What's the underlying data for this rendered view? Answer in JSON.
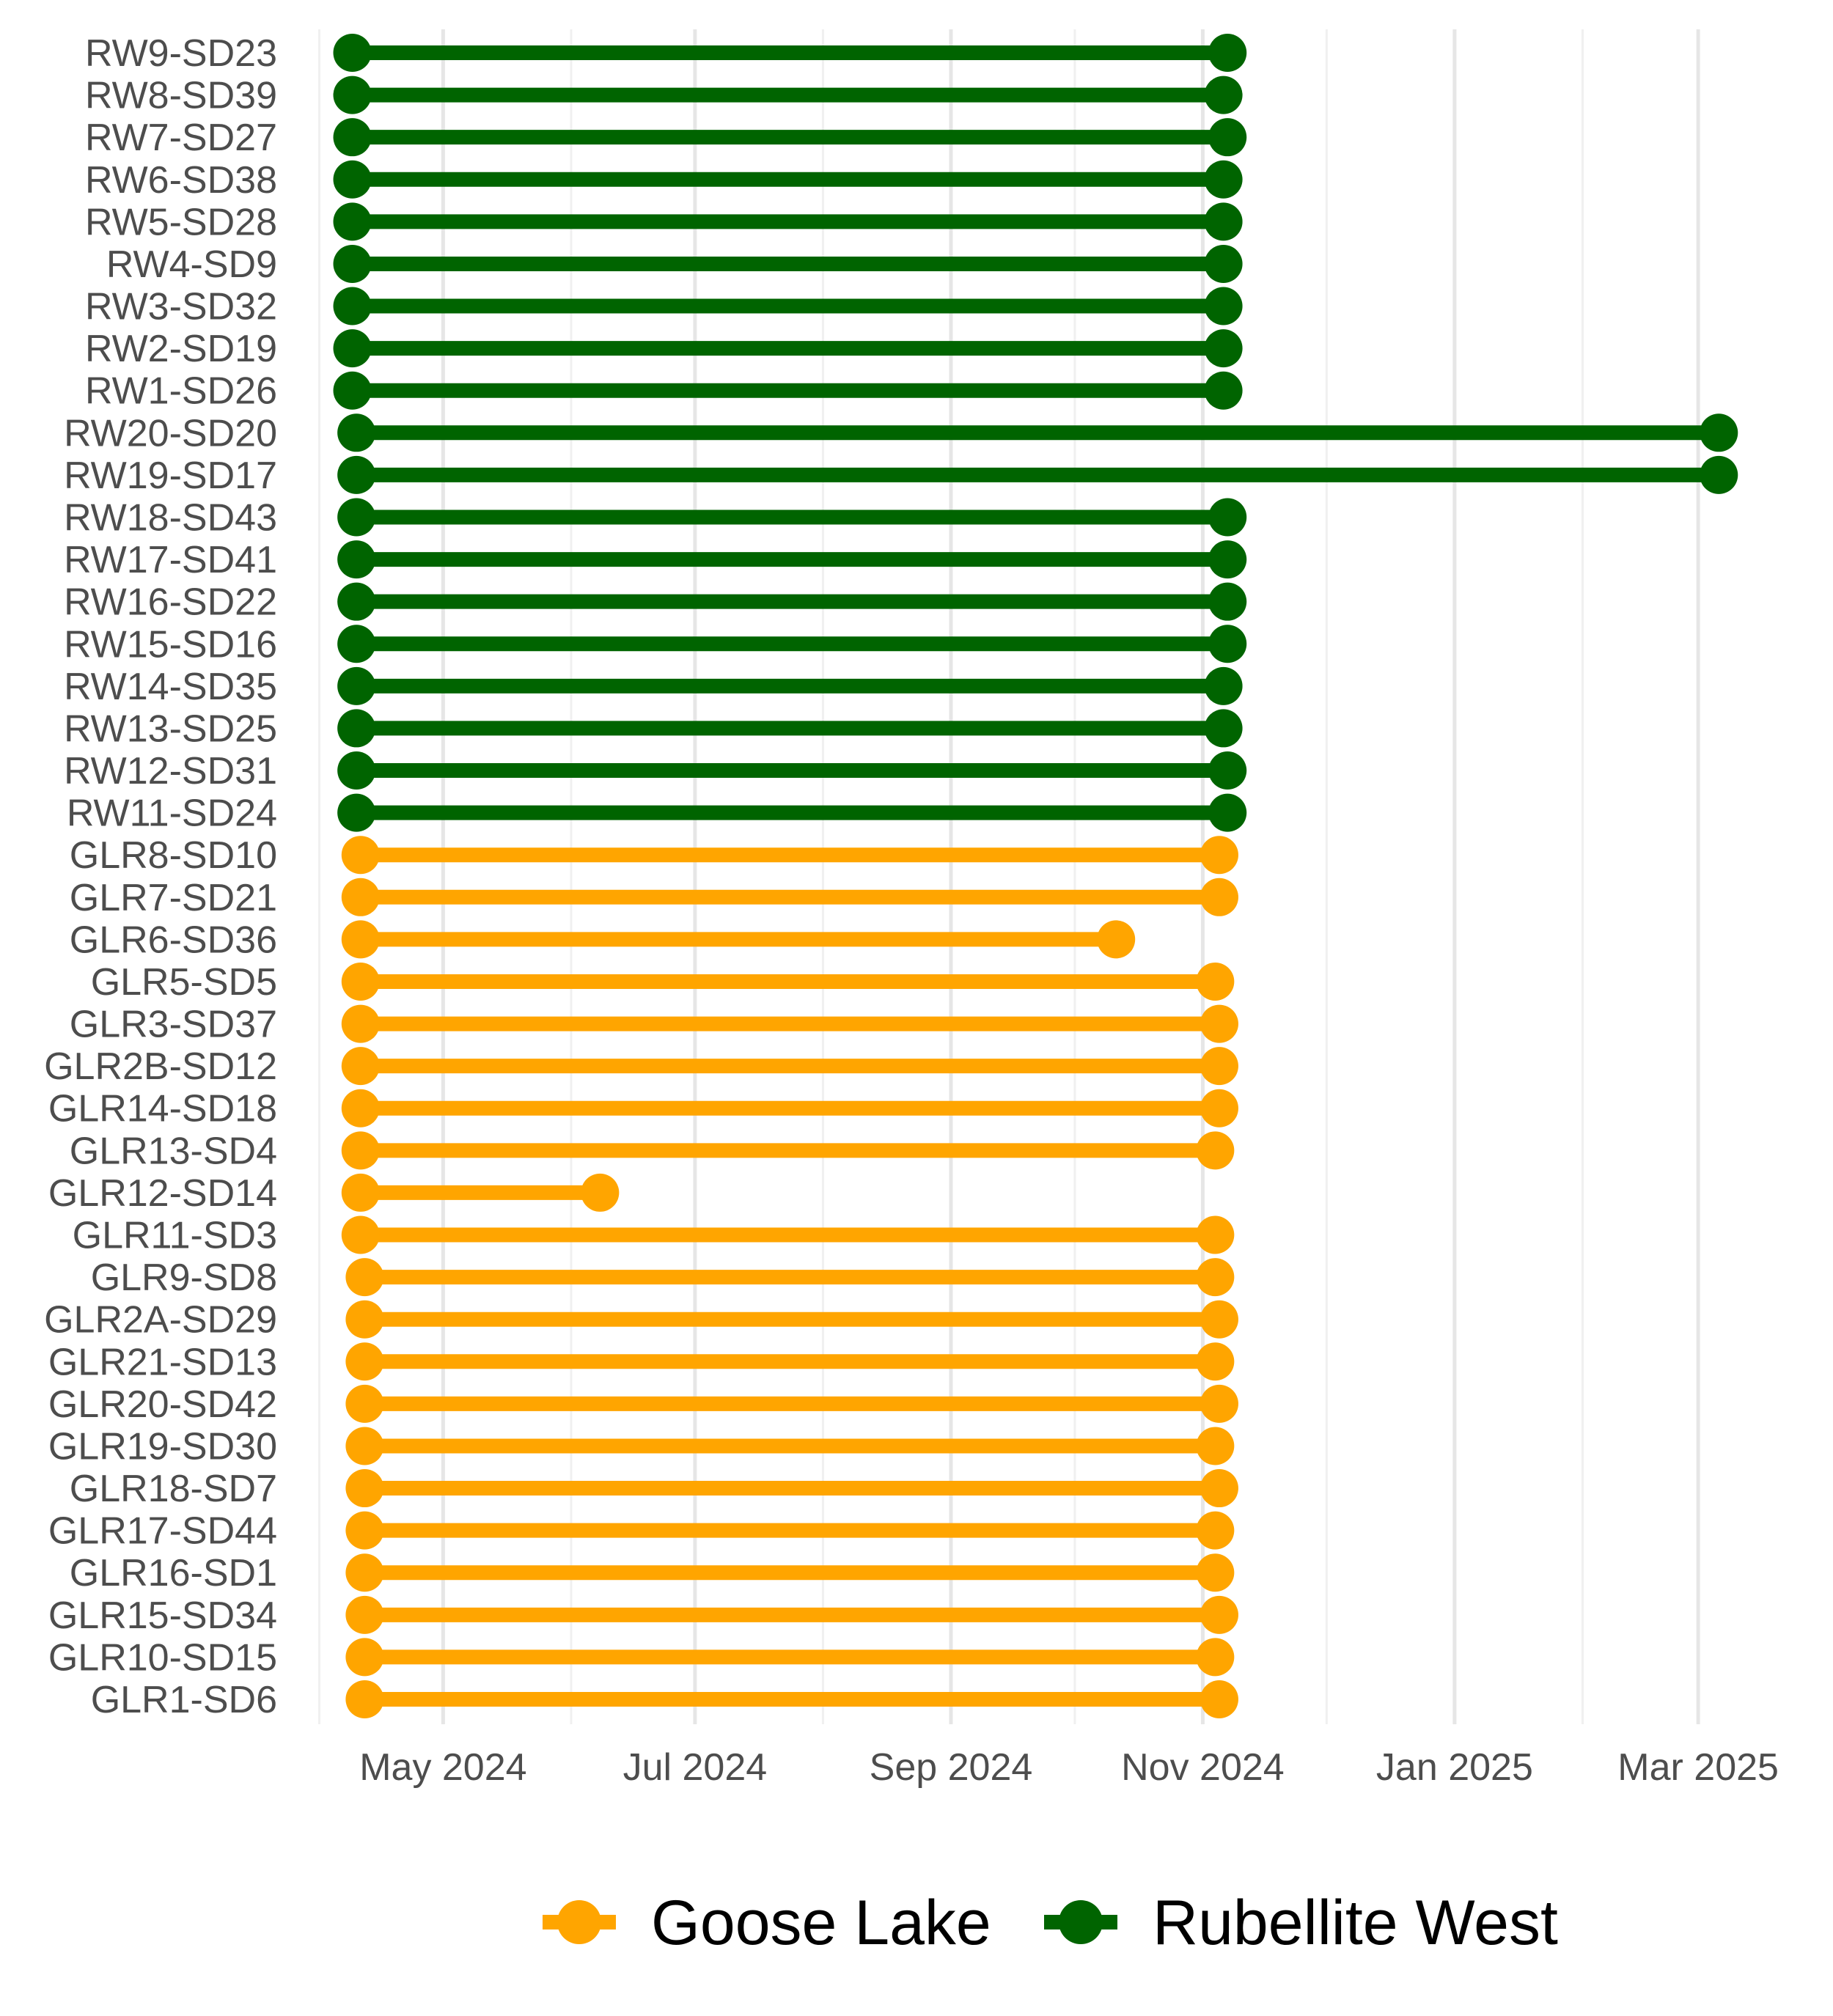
{
  "chart_data": {
    "type": "dumbbell",
    "x_axis": {
      "scale": "date",
      "range": [
        "2024-04-05",
        "2025-03-23"
      ],
      "ticks": [
        {
          "date": "2024-05-01",
          "label": "May 2024"
        },
        {
          "date": "2024-07-01",
          "label": "Jul 2024"
        },
        {
          "date": "2024-09-01",
          "label": "Sep 2024"
        },
        {
          "date": "2024-11-01",
          "label": "Nov 2024"
        },
        {
          "date": "2025-01-01",
          "label": "Jan 2025"
        },
        {
          "date": "2025-03-01",
          "label": "Mar 2025"
        }
      ],
      "minor_ticks": [
        "2024-04-01",
        "2024-06-01",
        "2024-08-01",
        "2024-10-01",
        "2024-12-01",
        "2025-02-01"
      ]
    },
    "grid": "vertical",
    "legend": {
      "position": "bottom",
      "entries": [
        {
          "label": "Goose Lake",
          "color": "#FFA500"
        },
        {
          "label": "Rubellite West",
          "color": "#006400"
        }
      ]
    },
    "series": [
      {
        "name": "Goose Lake",
        "color": "#FFA500",
        "rows": [
          {
            "label": "GLR1-SD6",
            "start": "2024-04-12",
            "end": "2024-11-05"
          },
          {
            "label": "GLR10-SD15",
            "start": "2024-04-12",
            "end": "2024-11-04"
          },
          {
            "label": "GLR15-SD34",
            "start": "2024-04-12",
            "end": "2024-11-05"
          },
          {
            "label": "GLR16-SD1",
            "start": "2024-04-12",
            "end": "2024-11-04"
          },
          {
            "label": "GLR17-SD44",
            "start": "2024-04-12",
            "end": "2024-11-04"
          },
          {
            "label": "GLR18-SD7",
            "start": "2024-04-12",
            "end": "2024-11-05"
          },
          {
            "label": "GLR19-SD30",
            "start": "2024-04-12",
            "end": "2024-11-04"
          },
          {
            "label": "GLR20-SD42",
            "start": "2024-04-12",
            "end": "2024-11-05"
          },
          {
            "label": "GLR21-SD13",
            "start": "2024-04-12",
            "end": "2024-11-04"
          },
          {
            "label": "GLR2A-SD29",
            "start": "2024-04-12",
            "end": "2024-11-05"
          },
          {
            "label": "GLR9-SD8",
            "start": "2024-04-12",
            "end": "2024-11-04"
          },
          {
            "label": "GLR11-SD3",
            "start": "2024-04-11",
            "end": "2024-11-04"
          },
          {
            "label": "GLR12-SD14",
            "start": "2024-04-11",
            "end": "2024-06-08"
          },
          {
            "label": "GLR13-SD4",
            "start": "2024-04-11",
            "end": "2024-11-04"
          },
          {
            "label": "GLR14-SD18",
            "start": "2024-04-11",
            "end": "2024-11-05"
          },
          {
            "label": "GLR2B-SD12",
            "start": "2024-04-11",
            "end": "2024-11-05"
          },
          {
            "label": "GLR3-SD37",
            "start": "2024-04-11",
            "end": "2024-11-05"
          },
          {
            "label": "GLR5-SD5",
            "start": "2024-04-11",
            "end": "2024-11-04"
          },
          {
            "label": "GLR6-SD36",
            "start": "2024-04-11",
            "end": "2024-10-11"
          },
          {
            "label": "GLR7-SD21",
            "start": "2024-04-11",
            "end": "2024-11-05"
          },
          {
            "label": "GLR8-SD10",
            "start": "2024-04-11",
            "end": "2024-11-05"
          }
        ]
      },
      {
        "name": "Rubellite West",
        "color": "#006400",
        "rows": [
          {
            "label": "RW11-SD24",
            "start": "2024-04-10",
            "end": "2024-11-07"
          },
          {
            "label": "RW12-SD31",
            "start": "2024-04-10",
            "end": "2024-11-07"
          },
          {
            "label": "RW13-SD25",
            "start": "2024-04-10",
            "end": "2024-11-06"
          },
          {
            "label": "RW14-SD35",
            "start": "2024-04-10",
            "end": "2024-11-06"
          },
          {
            "label": "RW15-SD16",
            "start": "2024-04-10",
            "end": "2024-11-07"
          },
          {
            "label": "RW16-SD22",
            "start": "2024-04-10",
            "end": "2024-11-07"
          },
          {
            "label": "RW17-SD41",
            "start": "2024-04-10",
            "end": "2024-11-07"
          },
          {
            "label": "RW18-SD43",
            "start": "2024-04-10",
            "end": "2024-11-07"
          },
          {
            "label": "RW19-SD17",
            "start": "2024-04-10",
            "end": "2025-03-06"
          },
          {
            "label": "RW20-SD20",
            "start": "2024-04-10",
            "end": "2025-03-06"
          },
          {
            "label": "RW1-SD26",
            "start": "2024-04-09",
            "end": "2024-11-06"
          },
          {
            "label": "RW2-SD19",
            "start": "2024-04-09",
            "end": "2024-11-06"
          },
          {
            "label": "RW3-SD32",
            "start": "2024-04-09",
            "end": "2024-11-06"
          },
          {
            "label": "RW4-SD9",
            "start": "2024-04-09",
            "end": "2024-11-06"
          },
          {
            "label": "RW5-SD28",
            "start": "2024-04-09",
            "end": "2024-11-06"
          },
          {
            "label": "RW6-SD38",
            "start": "2024-04-09",
            "end": "2024-11-06"
          },
          {
            "label": "RW7-SD27",
            "start": "2024-04-09",
            "end": "2024-11-07"
          },
          {
            "label": "RW8-SD39",
            "start": "2024-04-09",
            "end": "2024-11-06"
          },
          {
            "label": "RW9-SD23",
            "start": "2024-04-09",
            "end": "2024-11-07"
          }
        ]
      }
    ]
  }
}
